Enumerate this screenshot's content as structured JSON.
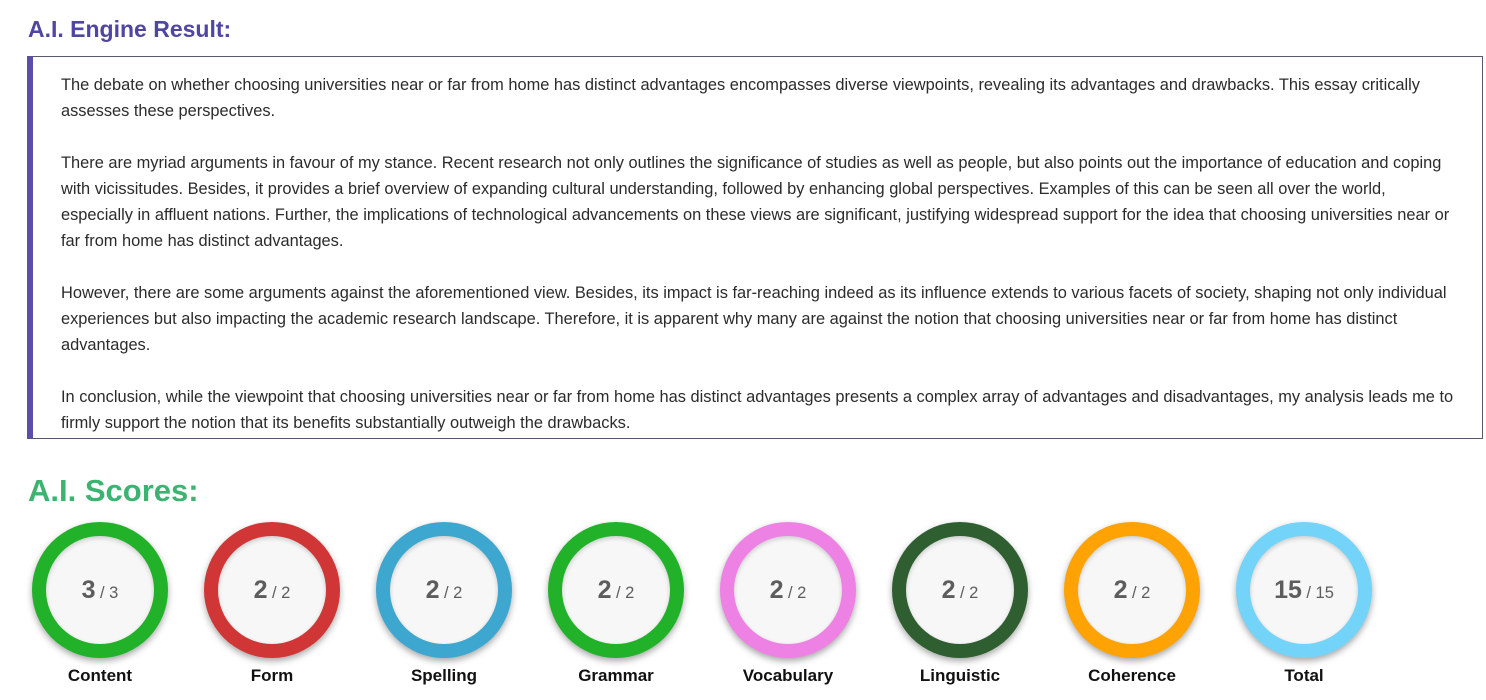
{
  "result": {
    "heading": "A.I. Engine Result:",
    "paragraphs": [
      "The debate on whether choosing universities near or far from home has distinct advantages encompasses diverse viewpoints, revealing its advantages and drawbacks. This essay critically assesses these perspectives.",
      "There are myriad arguments in favour of my stance. Recent research not only outlines the significance of studies as well as people, but also points out the importance of education and coping with vicissitudes. Besides, it provides a brief overview of expanding cultural understanding, followed by enhancing global perspectives. Examples of this can be seen all over the world, especially in affluent nations. Further, the implications of technological advancements on these views are significant, justifying widespread support for the idea that choosing universities near or far from home has distinct advantages.",
      "However, there are some arguments against the aforementioned view. Besides, its impact is far-reaching indeed as its influence extends to various facets of society, shaping not only individual experiences but also impacting the academic research landscape. Therefore, it is apparent why many are against the notion that choosing universities near or far from home has distinct advantages.",
      "In conclusion, while the viewpoint that choosing universities near or far from home has distinct advantages presents a complex array of advantages and disadvantages, my analysis leads me to firmly support the notion that its benefits substantially outweigh the drawbacks."
    ]
  },
  "scores": {
    "heading": "A.I. Scores:",
    "items": [
      {
        "label": "Content",
        "value": "3",
        "max": "/ 3",
        "color": "#22b22a"
      },
      {
        "label": "Form",
        "value": "2",
        "max": "/ 2",
        "color": "#d03636"
      },
      {
        "label": "Spelling",
        "value": "2",
        "max": "/ 2",
        "color": "#3ea7cf"
      },
      {
        "label": "Grammar",
        "value": "2",
        "max": "/ 2",
        "color": "#22b22a"
      },
      {
        "label": "Vocabulary",
        "value": "2",
        "max": "/ 2",
        "color": "#ee82e4"
      },
      {
        "label": "Linguistic",
        "value": "2",
        "max": "/ 2",
        "color": "#2f5e31"
      },
      {
        "label": "Coherence",
        "value": "2",
        "max": "/ 2",
        "color": "#ffa305"
      },
      {
        "label": "Total",
        "value": "15",
        "max": "/ 15",
        "color": "#74d3f9"
      }
    ]
  }
}
